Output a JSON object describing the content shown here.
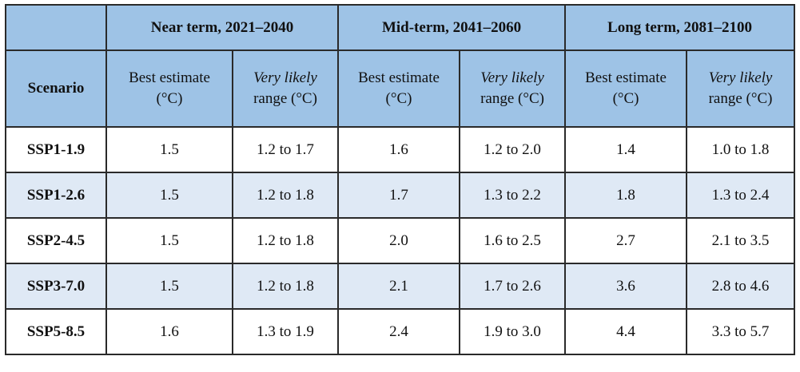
{
  "colors": {
    "header_bg": "#9ec3e6",
    "stripe_bg": "#dfe9f5",
    "border": "#2a2a2a"
  },
  "header": {
    "periods": [
      "Near term, 2021–2040",
      "Mid-term, 2041–2060",
      "Long term, 2081–2100"
    ],
    "scenario_label": "Scenario",
    "best_line1": "Best estimate",
    "best_line2": "(°C)",
    "likely_line1": "Very likely",
    "likely_line2": "range (°C)"
  },
  "rows": [
    {
      "scenario": "SSP1-1.9",
      "cells": [
        "1.5",
        "1.2 to 1.7",
        "1.6",
        "1.2 to 2.0",
        "1.4",
        "1.0 to 1.8"
      ]
    },
    {
      "scenario": "SSP1-2.6",
      "cells": [
        "1.5",
        "1.2 to 1.8",
        "1.7",
        "1.3 to 2.2",
        "1.8",
        "1.3 to 2.4"
      ]
    },
    {
      "scenario": "SSP2-4.5",
      "cells": [
        "1.5",
        "1.2 to 1.8",
        "2.0",
        "1.6 to 2.5",
        "2.7",
        "2.1 to 3.5"
      ]
    },
    {
      "scenario": "SSP3-7.0",
      "cells": [
        "1.5",
        "1.2 to 1.8",
        "2.1",
        "1.7 to 2.6",
        "3.6",
        "2.8 to 4.6"
      ]
    },
    {
      "scenario": "SSP5-8.5",
      "cells": [
        "1.6",
        "1.3 to 1.9",
        "2.4",
        "1.9 to 3.0",
        "4.4",
        "3.3 to 5.7"
      ]
    }
  ]
}
